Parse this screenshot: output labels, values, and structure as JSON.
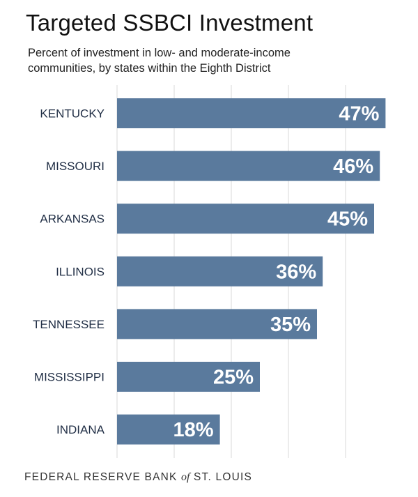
{
  "chart_data": {
    "type": "bar",
    "orientation": "horizontal",
    "title": "Targeted SSBCI Investment",
    "subtitle": "Percent of investment in low- and moderate-income communities, by states within the Eighth District",
    "categories": [
      "KENTUCKY",
      "MISSOURI",
      "ARKANSAS",
      "ILLINOIS",
      "TENNESSEE",
      "MISSISSIPPI",
      "INDIANA"
    ],
    "values": [
      47,
      46,
      45,
      36,
      35,
      25,
      18
    ],
    "value_labels": [
      "47%",
      "46%",
      "45%",
      "36%",
      "35%",
      "25%",
      "18%"
    ],
    "xlim": [
      0,
      50
    ],
    "grid_values": [
      0,
      10,
      20,
      30,
      40
    ],
    "grid": true,
    "legend": "none",
    "bar_color": "#5a7a9d",
    "label_color": "#1f2d44",
    "grid_color": "#d9d9d9"
  },
  "footer": {
    "before": "FEDERAL RESERVE BANK ",
    "of": "of",
    "after": " ST. LOUIS"
  }
}
